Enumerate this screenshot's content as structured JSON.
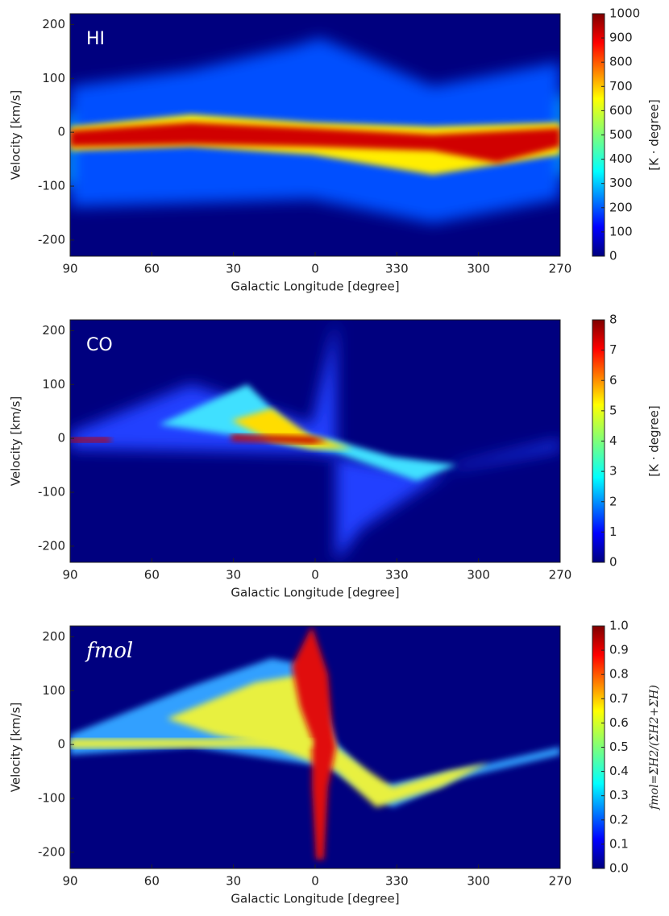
{
  "chart_data": [
    {
      "type": "heatmap",
      "label": "HI",
      "xlabel": "Galactic Longitude [degree]",
      "ylabel": "Velocity [km/s]",
      "xlim": [
        90,
        -90
      ],
      "xticks": [
        90,
        60,
        30,
        0,
        {
          "value": -30,
          "label": "330"
        },
        {
          "value": -60,
          "label": "300"
        },
        {
          "value": -90,
          "label": "270"
        }
      ],
      "ylim": [
        -230,
        220
      ],
      "yticks": [
        -200,
        -100,
        0,
        100,
        200
      ],
      "colorbar": {
        "label": "[K · degree]",
        "lim": [
          0,
          1000
        ],
        "ticks": [
          0,
          100,
          200,
          300,
          400,
          500,
          600,
          700,
          800,
          900,
          1000
        ]
      }
    },
    {
      "type": "heatmap",
      "label": "CO",
      "xlabel": "Galactic Longitude [degree]",
      "ylabel": "Velocity [km/s]",
      "xlim": [
        90,
        -90
      ],
      "xticks": [
        90,
        60,
        30,
        0,
        {
          "value": -30,
          "label": "330"
        },
        {
          "value": -60,
          "label": "300"
        },
        {
          "value": -90,
          "label": "270"
        }
      ],
      "ylim": [
        -230,
        220
      ],
      "yticks": [
        -200,
        -100,
        0,
        100,
        200
      ],
      "colorbar": {
        "label": "[K · degree]",
        "lim": [
          0,
          8
        ],
        "ticks": [
          0,
          1,
          2,
          3,
          4,
          5,
          6,
          7,
          8
        ]
      }
    },
    {
      "type": "heatmap",
      "label": "fmol",
      "xlabel": "Galactic Longitude [degree]",
      "ylabel": "Velocity [km/s]",
      "xlim": [
        90,
        -90
      ],
      "xticks": [
        90,
        60,
        30,
        0,
        {
          "value": -30,
          "label": "330"
        },
        {
          "value": -60,
          "label": "300"
        },
        {
          "value": -90,
          "label": "270"
        }
      ],
      "ylim": [
        -230,
        220
      ],
      "yticks": [
        -200,
        -100,
        0,
        100,
        200
      ],
      "colorbar": {
        "label": "fmol=ΣH2/(ΣH2+ΣH)",
        "lim": [
          0,
          1
        ],
        "ticks": [
          {
            "value": 0,
            "label": "0.0"
          },
          0.1,
          0.2,
          0.3,
          0.4,
          0.5,
          0.6,
          0.7,
          0.8,
          0.9,
          {
            "value": 1,
            "label": "1.0"
          }
        ]
      }
    }
  ]
}
